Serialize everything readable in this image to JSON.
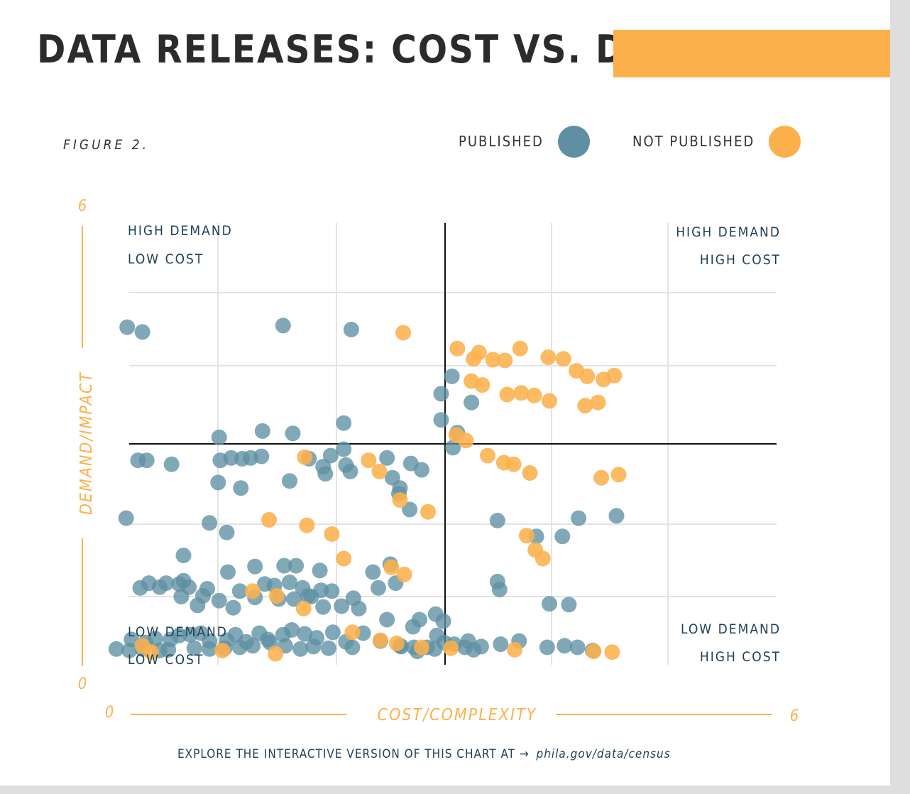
{
  "title": "DATA RELEASES: COST VS. DEMAND",
  "figure_label": "FIGURE 2.",
  "legend": [
    {
      "label": "PUBLISHED",
      "color": "#5e8fa3"
    },
    {
      "label": "NOT PUBLISHED",
      "color": "#fcb04c"
    }
  ],
  "footer": {
    "text": "EXPLORE THE INTERACTIVE VERSION OF THIS CHART AT →",
    "link": "phila.gov/data/census"
  },
  "colors": {
    "accent": "#fcb04c",
    "published": "#5e8fa3",
    "text_dark": "#1d3f55",
    "title": "#2b2b2b"
  },
  "chart_data": {
    "type": "scatter",
    "xlabel": "COST/COMPLEXITY",
    "ylabel": "DEMAND/IMPACT",
    "x_ticks": [
      "0",
      "6"
    ],
    "y_ticks": [
      "0",
      "6"
    ],
    "xlim": [
      0,
      6
    ],
    "ylim": [
      0,
      6
    ],
    "grid": true,
    "quadrant_labels": {
      "top_left": [
        "HIGH DEMAND",
        "LOW COST"
      ],
      "top_right": [
        "HIGH DEMAND",
        "HIGH COST"
      ],
      "bottom_left": [
        "LOW DEMAND",
        "LOW COST"
      ],
      "bottom_right": [
        "LOW DEMAND",
        "HIGH COST"
      ]
    },
    "series": [
      {
        "name": "PUBLISHED",
        "color": "#5e8fa3",
        "points": [
          [
            0.68,
            4.14
          ],
          [
            0.82,
            4.08
          ],
          [
            2.12,
            4.16
          ],
          [
            2.75,
            4.11
          ],
          [
            3.68,
            3.52
          ],
          [
            3.58,
            3.3
          ],
          [
            3.86,
            3.19
          ],
          [
            3.58,
            2.97
          ],
          [
            3.73,
            2.81
          ],
          [
            1.53,
            2.75
          ],
          [
            1.93,
            2.83
          ],
          [
            2.21,
            2.8
          ],
          [
            2.68,
            2.93
          ],
          [
            3.69,
            2.62
          ],
          [
            1.64,
            2.49
          ],
          [
            0.78,
            2.46
          ],
          [
            0.86,
            2.46
          ],
          [
            1.09,
            2.41
          ],
          [
            1.54,
            2.46
          ],
          [
            1.74,
            2.48
          ],
          [
            1.82,
            2.49
          ],
          [
            1.92,
            2.51
          ],
          [
            2.36,
            2.48
          ],
          [
            2.56,
            2.52
          ],
          [
            2.68,
            2.6
          ],
          [
            2.51,
            2.29
          ],
          [
            2.49,
            2.38
          ],
          [
            2.7,
            2.4
          ],
          [
            2.74,
            2.32
          ],
          [
            3.08,
            2.49
          ],
          [
            3.3,
            2.42
          ],
          [
            3.4,
            2.34
          ],
          [
            1.52,
            2.18
          ],
          [
            1.73,
            2.11
          ],
          [
            2.18,
            2.2
          ],
          [
            3.13,
            2.24
          ],
          [
            3.2,
            2.11
          ],
          [
            3.19,
            2.04
          ],
          [
            0.67,
            1.73
          ],
          [
            1.44,
            1.67
          ],
          [
            1.6,
            1.55
          ],
          [
            4.1,
            1.7
          ],
          [
            4.46,
            1.5
          ],
          [
            4.7,
            1.5
          ],
          [
            4.85,
            1.73
          ],
          [
            5.2,
            1.76
          ],
          [
            2.13,
            1.13
          ],
          [
            2.24,
            1.13
          ],
          [
            2.46,
            1.07
          ],
          [
            2.95,
            1.05
          ],
          [
            3.11,
            1.15
          ],
          [
            3.29,
            1.84
          ],
          [
            4.1,
            0.93
          ],
          [
            4.12,
            0.83
          ],
          [
            4.58,
            0.65
          ],
          [
            4.76,
            0.64
          ],
          [
            1.2,
            1.26
          ],
          [
            1.2,
            0.94
          ],
          [
            1.25,
            0.86
          ],
          [
            1.38,
            0.75
          ],
          [
            1.42,
            0.84
          ],
          [
            1.61,
            1.05
          ],
          [
            1.72,
            0.81
          ],
          [
            1.86,
            1.12
          ],
          [
            1.95,
            0.9
          ],
          [
            2.04,
            0.88
          ],
          [
            2.18,
            0.92
          ],
          [
            2.3,
            0.85
          ],
          [
            2.38,
            0.74
          ],
          [
            2.47,
            0.82
          ],
          [
            2.57,
            0.81
          ],
          [
            2.77,
            0.72
          ],
          [
            3,
            0.85
          ],
          [
            3.16,
            0.91
          ],
          [
            3.38,
            0.45
          ],
          [
            3.6,
            0.43
          ],
          [
            3.95,
            0.11
          ],
          [
            0.8,
            0.85
          ],
          [
            0.88,
            0.91
          ],
          [
            0.98,
            0.86
          ],
          [
            1.04,
            0.91
          ],
          [
            1.16,
            0.9
          ],
          [
            1.18,
            0.74
          ],
          [
            1.33,
            0.63
          ],
          [
            1.53,
            0.69
          ],
          [
            1.66,
            0.6
          ],
          [
            1.86,
            0.73
          ],
          [
            2.08,
            0.71
          ],
          [
            2.22,
            0.71
          ],
          [
            2.35,
            0.75
          ],
          [
            2.49,
            0.61
          ],
          [
            2.66,
            0.62
          ],
          [
            2.82,
            0.59
          ],
          [
            3.53,
            0.52
          ],
          [
            3.83,
            0.18
          ],
          [
            4.13,
            0.14
          ],
          [
            3.08,
            0.45
          ],
          [
            3.32,
            0.36
          ],
          [
            3.54,
            0.25
          ],
          [
            0.72,
            0.2
          ],
          [
            0.85,
            0.16
          ],
          [
            0.94,
            0.21
          ],
          [
            1.08,
            0.2
          ],
          [
            1.16,
            0.25
          ],
          [
            1.26,
            0.26
          ],
          [
            1.36,
            0.28
          ],
          [
            1.44,
            0.18
          ],
          [
            1.6,
            0.19
          ],
          [
            1.68,
            0.26
          ],
          [
            1.78,
            0.17
          ],
          [
            1.9,
            0.28
          ],
          [
            1.98,
            0.2
          ],
          [
            2.12,
            0.26
          ],
          [
            2.2,
            0.32
          ],
          [
            2.32,
            0.27
          ],
          [
            2.43,
            0.22
          ],
          [
            2.58,
            0.29
          ],
          [
            2.7,
            0.17
          ],
          [
            2.86,
            0.28
          ],
          [
            3.02,
            0.18
          ],
          [
            3.21,
            0.11
          ],
          [
            3.36,
            0.05
          ],
          [
            3.52,
            0.08
          ],
          [
            3.8,
            0.1
          ],
          [
            0.58,
            0.08
          ],
          [
            0.7,
            0.06
          ],
          [
            0.82,
            0.08
          ],
          [
            0.98,
            0.06
          ],
          [
            1.06,
            0.07
          ],
          [
            1.3,
            0.09
          ],
          [
            1.44,
            0.08
          ],
          [
            1.58,
            0.09
          ],
          [
            1.72,
            0.1
          ],
          [
            1.84,
            0.12
          ],
          [
            2,
            0.16
          ],
          [
            2.14,
            0.12
          ],
          [
            2.28,
            0.08
          ],
          [
            2.4,
            0.11
          ],
          [
            2.54,
            0.09
          ],
          [
            2.76,
            0.1
          ],
          [
            3.2,
            0.12
          ],
          [
            3.33,
            0.1
          ],
          [
            3.45,
            0.1
          ],
          [
            3.61,
            0.16
          ],
          [
            3.7,
            0.14
          ],
          [
            3.88,
            0.07
          ],
          [
            4.3,
            0.18
          ],
          [
            4.56,
            0.1
          ],
          [
            4.72,
            0.12
          ],
          [
            4.84,
            0.1
          ],
          [
            4.98,
            0.06
          ]
        ]
      },
      {
        "name": "NOT PUBLISHED",
        "color": "#fcb04c",
        "points": [
          [
            3.23,
            4.07
          ],
          [
            3.73,
            3.87
          ],
          [
            3.88,
            3.74
          ],
          [
            3.93,
            3.82
          ],
          [
            4.06,
            3.73
          ],
          [
            4.17,
            3.72
          ],
          [
            4.31,
            3.87
          ],
          [
            4.57,
            3.76
          ],
          [
            4.71,
            3.74
          ],
          [
            4.83,
            3.59
          ],
          [
            4.93,
            3.52
          ],
          [
            5.08,
            3.48
          ],
          [
            5.18,
            3.53
          ],
          [
            3.86,
            3.46
          ],
          [
            3.96,
            3.41
          ],
          [
            4.19,
            3.29
          ],
          [
            4.32,
            3.31
          ],
          [
            4.44,
            3.28
          ],
          [
            4.58,
            3.21
          ],
          [
            4.91,
            3.15
          ],
          [
            5.03,
            3.19
          ],
          [
            3.72,
            2.78
          ],
          [
            3.81,
            2.71
          ],
          [
            4.01,
            2.52
          ],
          [
            4.16,
            2.43
          ],
          [
            4.25,
            2.41
          ],
          [
            4.4,
            2.3
          ],
          [
            5.06,
            2.24
          ],
          [
            5.22,
            2.28
          ],
          [
            2.32,
            2.5
          ],
          [
            2.91,
            2.46
          ],
          [
            3.01,
            2.32
          ],
          [
            3.2,
            1.96
          ],
          [
            3.46,
            1.81
          ],
          [
            4.37,
            1.51
          ],
          [
            4.45,
            1.33
          ],
          [
            4.52,
            1.22
          ],
          [
            1.99,
            1.71
          ],
          [
            2.34,
            1.64
          ],
          [
            2.57,
            1.53
          ],
          [
            2.68,
            1.22
          ],
          [
            3.12,
            1.11
          ],
          [
            3.24,
            1.02
          ],
          [
            1.84,
            0.81
          ],
          [
            2.06,
            0.75
          ],
          [
            2.31,
            0.59
          ],
          [
            2.76,
            0.29
          ],
          [
            3.02,
            0.19
          ],
          [
            3.17,
            0.15
          ],
          [
            3.4,
            0.1
          ],
          [
            3.67,
            0.09
          ],
          [
            4.26,
            0.07
          ],
          [
            4.99,
            0.05
          ],
          [
            5.16,
            0.04
          ],
          [
            0.82,
            0.12
          ],
          [
            0.9,
            0.04
          ],
          [
            1.56,
            0.06
          ],
          [
            2.05,
            0.02
          ]
        ]
      }
    ]
  }
}
